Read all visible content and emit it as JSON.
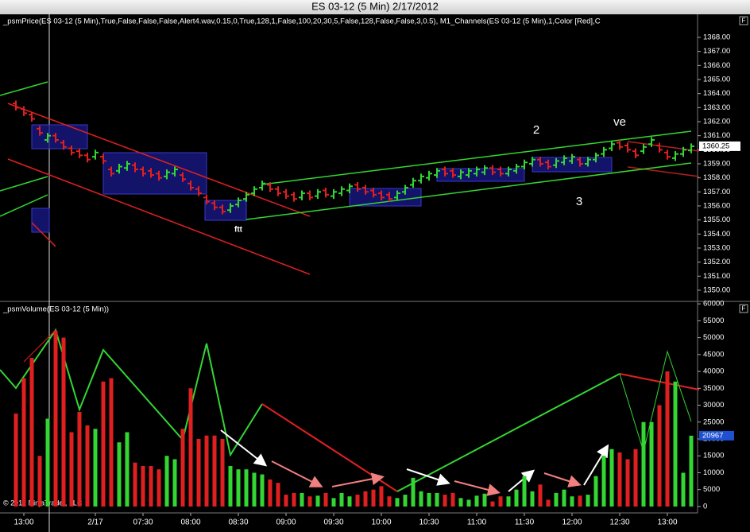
{
  "title": "ES 03-12 (5 Min)  2/17/2012",
  "copyright": "© 2012 NinjaTrader, LLC",
  "panel_button": "F",
  "chart_data": [
    {
      "type": "ohlc",
      "label": "_psmPrice(ES 03-12 (5 Min),True,False,False,False,Alert4.wav,0.15,0,True,128,1,False,100,20,30,5,False,128,False,False,3,0.5), M1_Channels(ES 03-12 (5 Min),1,Color [Red],C",
      "up_color": "#33d633",
      "down_color": "#e02020",
      "open": [
        1363.3,
        1362.9,
        1362.5,
        1361.5,
        1360.7,
        1361.0,
        1360.5,
        1360.1,
        1359.9,
        1359.6,
        1359.5,
        1359.5,
        1358.6,
        1358.5,
        1358.7,
        1358.9,
        1358.6,
        1358.5,
        1358.3,
        1358.1,
        1358.3,
        1358.2,
        1357.6,
        1357.2,
        1356.6,
        1356.2,
        1355.9,
        1355.7,
        1356.1,
        1356.5,
        1356.9,
        1357.3,
        1357.5,
        1357.2,
        1357.0,
        1356.8,
        1356.6,
        1356.9,
        1356.7,
        1357.1,
        1356.7,
        1356.9,
        1357.1,
        1357.5,
        1357.3,
        1357.1,
        1356.9,
        1356.8,
        1356.6,
        1357.0,
        1357.5,
        1357.8,
        1358.0,
        1358.2,
        1358.6,
        1358.5,
        1358.1,
        1358.2,
        1358.3,
        1358.4,
        1358.7,
        1358.6,
        1358.3,
        1358.5,
        1358.8,
        1359.0,
        1359.3,
        1359.1,
        1358.9,
        1359.1,
        1359.2,
        1359.3,
        1359.0,
        1359.3,
        1359.7,
        1360.1,
        1360.5,
        1360.3,
        1359.9,
        1359.9,
        1360.4,
        1360.3,
        1359.8,
        1359.4,
        1359.7,
        1359.95
      ],
      "high": [
        1363.5,
        1363.1,
        1362.7,
        1361.7,
        1361.2,
        1361.2,
        1360.7,
        1360.3,
        1360.1,
        1359.8,
        1360.0,
        1359.7,
        1358.8,
        1359.0,
        1359.2,
        1359.1,
        1358.8,
        1358.7,
        1358.5,
        1358.6,
        1358.8,
        1358.4,
        1357.8,
        1357.4,
        1356.8,
        1356.4,
        1356.1,
        1356.2,
        1356.6,
        1357.0,
        1357.4,
        1357.8,
        1357.7,
        1357.4,
        1357.2,
        1357.0,
        1357.1,
        1357.1,
        1357.2,
        1357.3,
        1357.2,
        1357.4,
        1357.6,
        1357.7,
        1357.5,
        1357.3,
        1357.1,
        1357.0,
        1357.1,
        1357.5,
        1358.0,
        1358.3,
        1358.5,
        1358.7,
        1358.8,
        1358.7,
        1358.6,
        1358.7,
        1358.8,
        1358.9,
        1358.9,
        1358.8,
        1358.8,
        1359.0,
        1359.3,
        1359.5,
        1359.5,
        1359.3,
        1359.4,
        1359.6,
        1359.7,
        1359.5,
        1359.5,
        1359.8,
        1360.2,
        1360.6,
        1360.7,
        1360.5,
        1360.1,
        1360.4,
        1360.9,
        1360.5,
        1360.0,
        1359.9,
        1360.2,
        1360.45
      ],
      "low": [
        1362.8,
        1362.4,
        1362.0,
        1361.0,
        1360.5,
        1360.5,
        1360.0,
        1359.6,
        1359.4,
        1359.1,
        1359.3,
        1359.0,
        1358.1,
        1358.3,
        1358.5,
        1358.4,
        1358.1,
        1358.0,
        1357.8,
        1357.9,
        1358.1,
        1357.7,
        1357.1,
        1356.7,
        1356.1,
        1355.7,
        1355.4,
        1355.5,
        1355.9,
        1356.3,
        1356.7,
        1357.1,
        1357.0,
        1356.7,
        1356.5,
        1356.3,
        1356.4,
        1356.4,
        1356.5,
        1356.6,
        1356.5,
        1356.7,
        1356.9,
        1357.0,
        1356.8,
        1356.6,
        1356.4,
        1356.3,
        1356.4,
        1356.8,
        1357.3,
        1357.6,
        1357.8,
        1358.0,
        1358.1,
        1358.0,
        1357.9,
        1358.0,
        1358.1,
        1358.2,
        1358.2,
        1358.1,
        1358.1,
        1358.3,
        1358.6,
        1358.8,
        1358.8,
        1358.6,
        1358.7,
        1358.9,
        1359.0,
        1358.8,
        1358.8,
        1359.1,
        1359.5,
        1359.9,
        1360.0,
        1359.8,
        1359.4,
        1359.7,
        1360.2,
        1359.8,
        1359.3,
        1359.2,
        1359.5,
        1359.75
      ],
      "close": [
        1363.0,
        1362.6,
        1362.2,
        1361.2,
        1361.0,
        1360.7,
        1360.2,
        1359.8,
        1359.6,
        1359.3,
        1359.8,
        1359.2,
        1358.3,
        1358.8,
        1359.0,
        1358.6,
        1358.3,
        1358.2,
        1358.0,
        1358.4,
        1358.6,
        1357.9,
        1357.3,
        1356.9,
        1356.3,
        1355.9,
        1355.6,
        1356.0,
        1356.4,
        1356.8,
        1357.2,
        1357.6,
        1357.2,
        1356.9,
        1356.7,
        1356.5,
        1356.9,
        1356.6,
        1357.0,
        1356.8,
        1357.0,
        1357.2,
        1357.4,
        1357.2,
        1357.0,
        1356.8,
        1356.6,
        1356.5,
        1356.9,
        1357.3,
        1357.8,
        1358.1,
        1358.3,
        1358.5,
        1358.3,
        1358.2,
        1358.4,
        1358.5,
        1358.6,
        1358.7,
        1358.4,
        1358.3,
        1358.6,
        1358.8,
        1359.1,
        1359.3,
        1359.0,
        1358.8,
        1359.2,
        1359.4,
        1359.5,
        1359.0,
        1359.3,
        1359.6,
        1360.0,
        1360.4,
        1360.2,
        1360.0,
        1359.6,
        1360.2,
        1360.7,
        1360.0,
        1359.5,
        1359.7,
        1360.0,
        1360.25
      ],
      "ylim": [
        1349.26,
        1369.53
      ],
      "yticks": [
        {
          "value": 1350,
          "label": "1350.00"
        },
        {
          "value": 1351,
          "label": "1351.00"
        },
        {
          "value": 1352,
          "label": "1352.00"
        },
        {
          "value": 1353,
          "label": "1353.00"
        },
        {
          "value": 1354,
          "label": "1354.00"
        },
        {
          "value": 1355,
          "label": "1355.00"
        },
        {
          "value": 1356,
          "label": "1356.00"
        },
        {
          "value": 1357,
          "label": "1357.00"
        },
        {
          "value": 1358,
          "label": "1358.00"
        },
        {
          "value": 1359,
          "label": "1359.00"
        },
        {
          "value": 1360,
          "label": "1360.00"
        },
        {
          "value": 1361,
          "label": "1361.00"
        },
        {
          "value": 1362,
          "label": "1362.00"
        },
        {
          "value": 1363,
          "label": "1363.00"
        },
        {
          "value": 1364,
          "label": "1364.00"
        },
        {
          "value": 1365,
          "label": "1365.00"
        },
        {
          "value": 1366,
          "label": "1366.00"
        },
        {
          "value": 1367,
          "label": "1367.00"
        },
        {
          "value": 1368,
          "label": "1368.00"
        }
      ],
      "annotations": [
        "2",
        "3",
        "ve",
        "ftt"
      ]
    },
    {
      "type": "bar",
      "label": "_psmVolume(ES 03-12 (5 Min))",
      "categories": [
        null,
        "13:00",
        null,
        null,
        null,
        null,
        null,
        null,
        null,
        null,
        "2/17",
        null,
        null,
        null,
        null,
        null,
        "07:30",
        null,
        null,
        null,
        null,
        null,
        "08:00",
        null,
        null,
        null,
        null,
        null,
        "08:30",
        null,
        null,
        null,
        null,
        null,
        "09:00",
        null,
        null,
        null,
        null,
        null,
        "09:30",
        null,
        null,
        null,
        null,
        null,
        "10:00",
        null,
        null,
        null,
        null,
        null,
        "10:30",
        null,
        null,
        null,
        null,
        null,
        "11:00",
        null,
        null,
        null,
        null,
        null,
        "11:30",
        null,
        null,
        null,
        null,
        null,
        "12:00",
        null,
        null,
        null,
        null,
        null,
        "12:30",
        null,
        null,
        null,
        null,
        null,
        "13:00",
        null,
        null,
        null
      ],
      "values": [
        27500,
        38000,
        44000,
        15000,
        26000,
        52000,
        50000,
        22000,
        28000,
        24000,
        23000,
        37000,
        38000,
        19000,
        22000,
        13000,
        12000,
        12000,
        11000,
        15000,
        14000,
        23000,
        35000,
        20000,
        21000,
        21000,
        20000,
        12000,
        11000,
        11000,
        10000,
        9500,
        8000,
        7000,
        3500,
        4000,
        4000,
        3000,
        3200,
        4000,
        2500,
        4000,
        3000,
        3500,
        4500,
        5000,
        6000,
        3000,
        2500,
        3500,
        8500,
        4500,
        4000,
        4000,
        3500,
        4000,
        2500,
        2000,
        3200,
        3800,
        1500,
        3000,
        3000,
        5000,
        9000,
        4500,
        6500,
        2000,
        4000,
        5000,
        3000,
        3200,
        3500,
        9000,
        15000,
        17000,
        16000,
        14000,
        17000,
        25000,
        25000,
        30000,
        40000,
        37000,
        10000,
        20967
      ],
      "ylim": [
        -1900,
        60500
      ],
      "yticks": [
        0,
        5000,
        10000,
        15000,
        20000,
        25000,
        30000,
        35000,
        40000,
        45000,
        50000,
        55000,
        60000
      ]
    }
  ]
}
